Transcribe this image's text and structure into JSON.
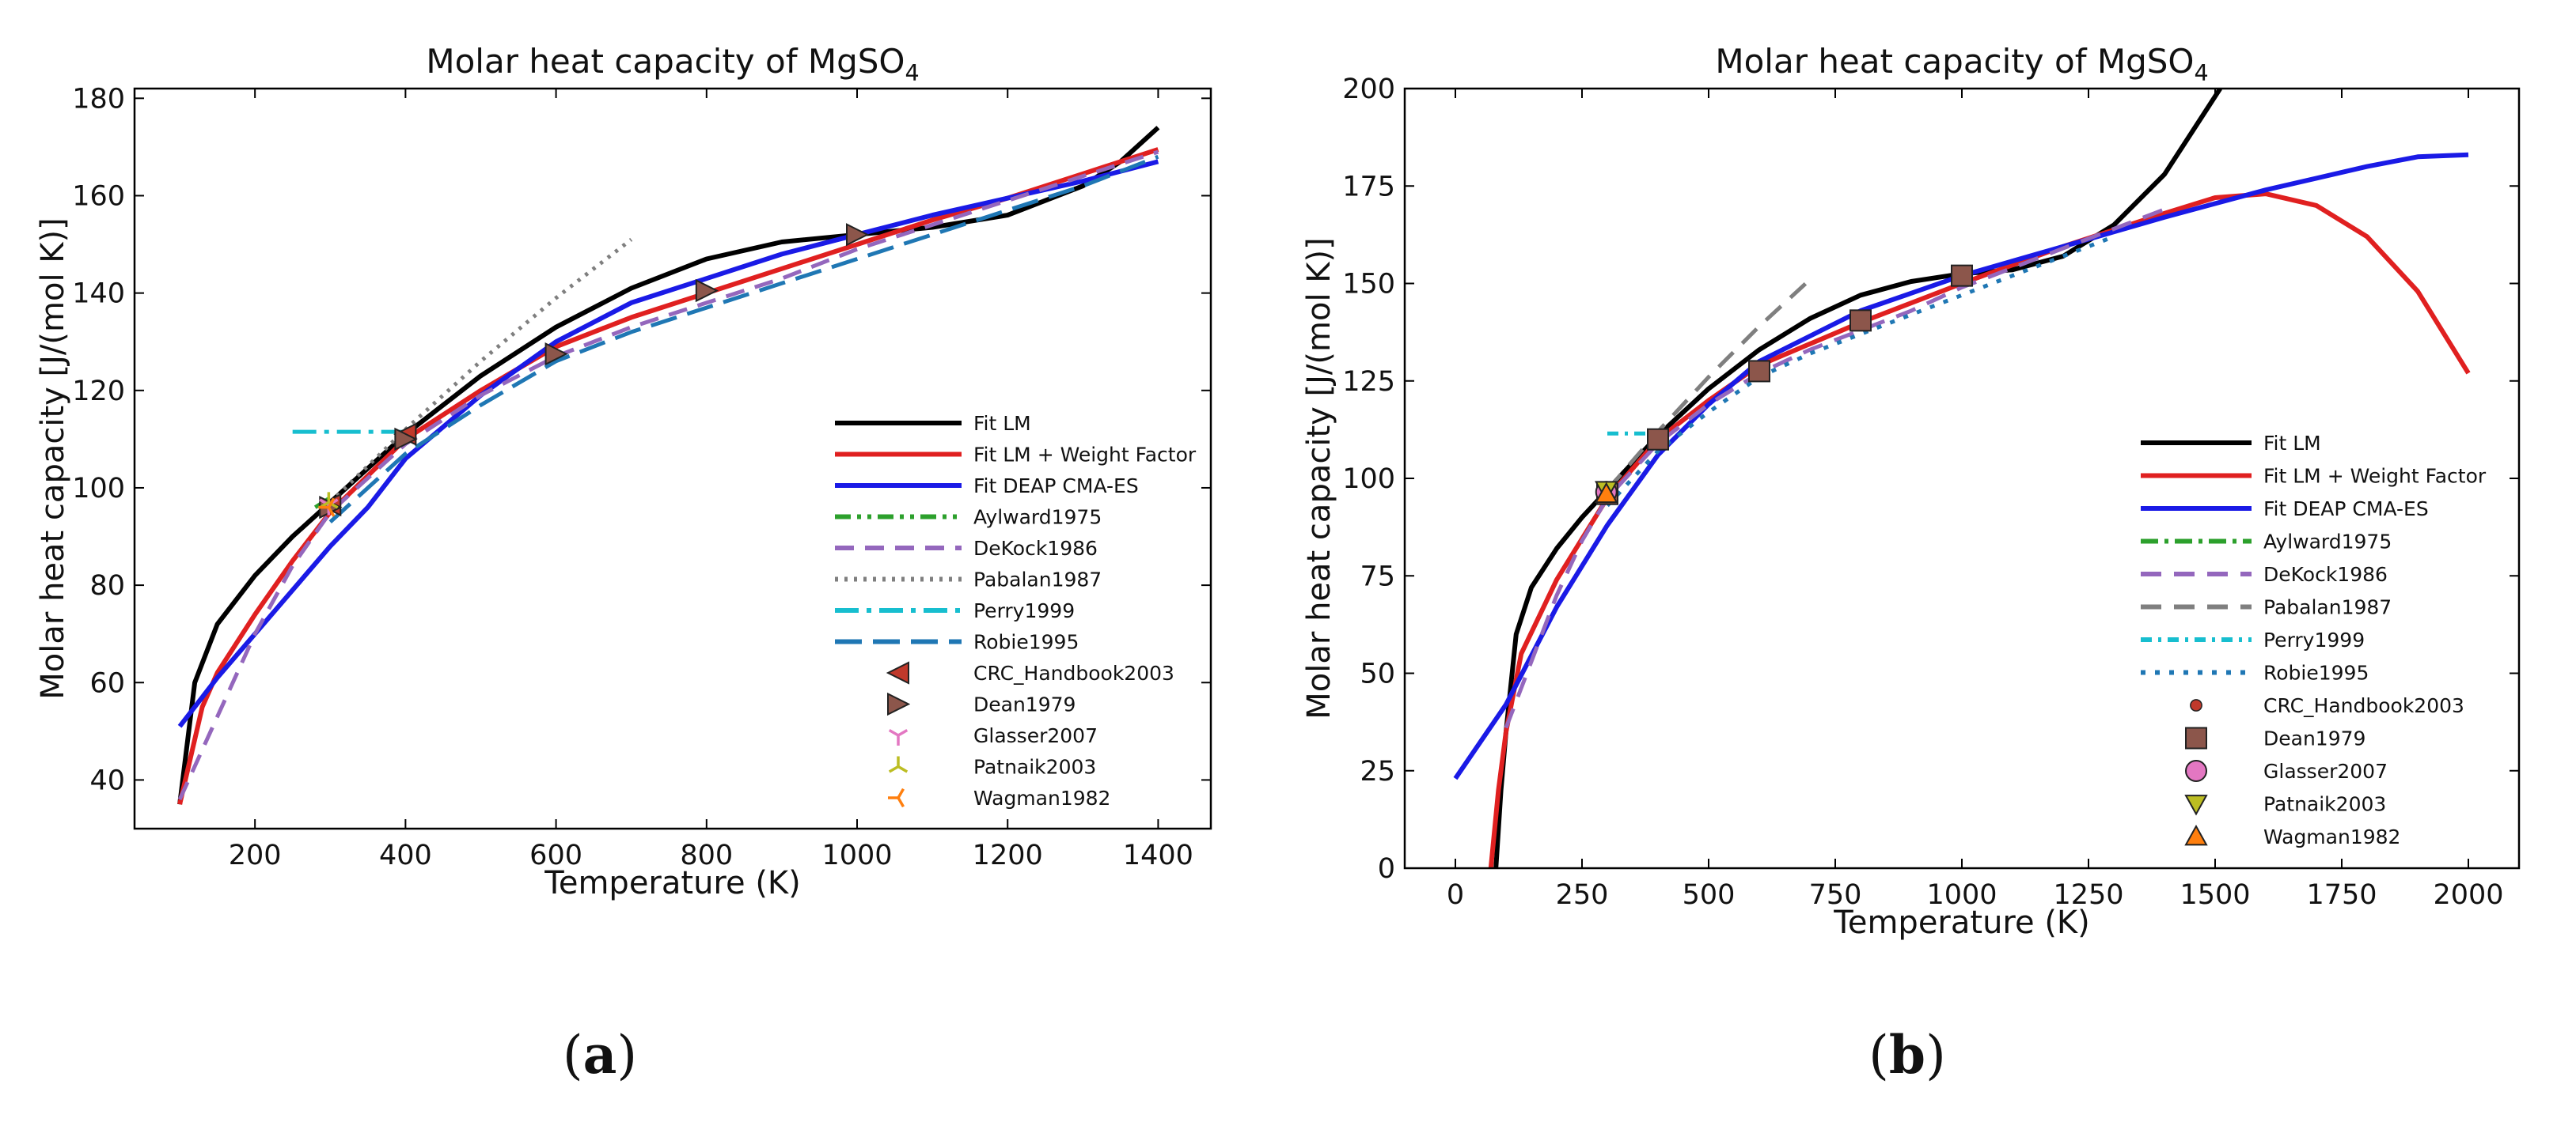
{
  "panels": [
    {
      "label_open": "(",
      "label_letter": "a",
      "label_close": ")"
    },
    {
      "label_open": "(",
      "label_letter": "b",
      "label_close": ")"
    }
  ],
  "chart_data": [
    {
      "type": "line",
      "title": "Molar heat capacity of MgSO",
      "title_subscript": "4",
      "xlabel": "Temperature (K)",
      "ylabel": "Molar heat capacity [J/(mol K)]",
      "xlim": [
        40,
        1470
      ],
      "ylim": [
        30,
        182
      ],
      "xticks": [
        200,
        400,
        600,
        800,
        1000,
        1200,
        1400
      ],
      "yticks": [
        40,
        60,
        80,
        100,
        120,
        140,
        160,
        180
      ],
      "legend_position": "lower-right",
      "series": [
        {
          "name": "Fit LM",
          "kind": "line",
          "color": "#000000",
          "dash": "",
          "points": [
            [
              100,
              35
            ],
            [
              120,
              60
            ],
            [
              150,
              72
            ],
            [
              200,
              82
            ],
            [
              250,
              90
            ],
            [
              300,
              97
            ],
            [
              350,
              104
            ],
            [
              400,
              111
            ],
            [
              450,
              117
            ],
            [
              500,
              123
            ],
            [
              600,
              133
            ],
            [
              700,
              141
            ],
            [
              800,
              147
            ],
            [
              900,
              150.5
            ],
            [
              1000,
              152
            ],
            [
              1100,
              153.5
            ],
            [
              1200,
              156
            ],
            [
              1300,
              162
            ],
            [
              1350,
              167
            ],
            [
              1400,
              174
            ]
          ]
        },
        {
          "name": "Fit LM + Weight Factor",
          "kind": "line",
          "color": "#e02020",
          "dash": "",
          "points": [
            [
              100,
              35
            ],
            [
              130,
              55
            ],
            [
              150,
              62
            ],
            [
              200,
              74
            ],
            [
              250,
              85
            ],
            [
              300,
              95
            ],
            [
              400,
              110
            ],
            [
              500,
              120
            ],
            [
              600,
              129
            ],
            [
              700,
              135
            ],
            [
              800,
              140
            ],
            [
              900,
              145
            ],
            [
              1000,
              150
            ],
            [
              1100,
              155
            ],
            [
              1200,
              159.5
            ],
            [
              1300,
              164.5
            ],
            [
              1400,
              169.5
            ]
          ]
        },
        {
          "name": "Fit DEAP CMA-ES",
          "kind": "line",
          "color": "#1a1ae6",
          "dash": "",
          "points": [
            [
              100,
              51
            ],
            [
              150,
              61
            ],
            [
              200,
              70
            ],
            [
              250,
              79
            ],
            [
              300,
              88
            ],
            [
              350,
              96
            ],
            [
              400,
              106
            ],
            [
              500,
              119
            ],
            [
              600,
              130
            ],
            [
              700,
              138
            ],
            [
              800,
              143
            ],
            [
              900,
              148
            ],
            [
              1000,
              152
            ],
            [
              1100,
              156
            ],
            [
              1200,
              159.5
            ],
            [
              1300,
              163
            ],
            [
              1400,
              167
            ]
          ]
        },
        {
          "name": "Aylward1975",
          "kind": "line",
          "color": "#2ca02c",
          "dash": "20 8 5 8 5 8",
          "points": [
            [
              280,
              96
            ],
            [
              300,
              98
            ]
          ]
        },
        {
          "name": "DeKock1986",
          "kind": "line",
          "color": "#9467bd",
          "dash": "24 14",
          "points": [
            [
              100,
              36
            ],
            [
              150,
              53
            ],
            [
              200,
              70
            ],
            [
              250,
              84
            ],
            [
              300,
              95
            ],
            [
              400,
              109
            ],
            [
              500,
              119
            ],
            [
              600,
              127
            ],
            [
              700,
              133
            ],
            [
              800,
              138
            ],
            [
              900,
              143
            ],
            [
              1000,
              149
            ],
            [
              1100,
              154
            ],
            [
              1200,
              159
            ],
            [
              1300,
              164
            ],
            [
              1400,
              169
            ]
          ]
        },
        {
          "name": "Pabalan1987",
          "kind": "line",
          "color": "#7f7f7f",
          "dash": "4 8",
          "points": [
            [
              300,
              97
            ],
            [
              400,
              112
            ],
            [
              500,
              126
            ],
            [
              600,
              139
            ],
            [
              700,
              151
            ]
          ]
        },
        {
          "name": "Perry1999",
          "kind": "line",
          "color": "#17becf",
          "dash": "30 10 6 10",
          "points": [
            [
              250,
              111.5
            ],
            [
              400,
              111.5
            ]
          ]
        },
        {
          "name": "Robie1995",
          "kind": "line",
          "color": "#1f77b4",
          "dash": "34 14",
          "points": [
            [
              300,
              93
            ],
            [
              400,
              107
            ],
            [
              500,
              117
            ],
            [
              600,
              126
            ],
            [
              700,
              132
            ],
            [
              800,
              137
            ],
            [
              900,
              142
            ],
            [
              1000,
              147
            ],
            [
              1100,
              152
            ],
            [
              1200,
              157
            ],
            [
              1300,
              162
            ],
            [
              1400,
              168
            ]
          ]
        },
        {
          "name": "CRC_Handbook2003",
          "kind": "marker",
          "marker": "triangle-left",
          "color": "#c0392b",
          "points": [
            [
              300,
              96.5
            ],
            [
              400,
              111
            ]
          ]
        },
        {
          "name": "Dean1979",
          "kind": "marker",
          "marker": "triangle-right",
          "color": "#8c564b",
          "points": [
            [
              300,
              96
            ],
            [
              400,
              110
            ],
            [
              600,
              127.5
            ],
            [
              800,
              140.5
            ],
            [
              1000,
              152
            ]
          ]
        },
        {
          "name": "Glasser2007",
          "kind": "marker",
          "marker": "tri-down",
          "color": "#e377c2",
          "points": [
            [
              298,
              96.5
            ]
          ]
        },
        {
          "name": "Patnaik2003",
          "kind": "marker",
          "marker": "tri-up",
          "color": "#bcbd22",
          "points": [
            [
              298,
              97
            ]
          ]
        },
        {
          "name": "Wagman1982",
          "kind": "marker",
          "marker": "tri-left",
          "color": "#ff7f0e",
          "points": [
            [
              298,
              96
            ]
          ]
        }
      ]
    },
    {
      "type": "line",
      "title": "Molar heat capacity of MgSO",
      "title_subscript": "4",
      "xlabel": "Temperature (K)",
      "ylabel": "Molar heat capacity [J/(mol K)]",
      "xlim": [
        -100,
        2100
      ],
      "ylim": [
        0,
        200
      ],
      "xticks": [
        0,
        250,
        500,
        750,
        1000,
        1250,
        1500,
        1750,
        2000
      ],
      "yticks": [
        0,
        25,
        50,
        75,
        100,
        125,
        150,
        175,
        200
      ],
      "legend_position": "lower-right",
      "series": [
        {
          "name": "Fit LM",
          "kind": "line",
          "color": "#000000",
          "dash": "",
          "points": [
            [
              80,
              0
            ],
            [
              90,
              20
            ],
            [
              100,
              35
            ],
            [
              120,
              60
            ],
            [
              150,
              72
            ],
            [
              200,
              82
            ],
            [
              250,
              90
            ],
            [
              300,
              97
            ],
            [
              400,
              111
            ],
            [
              500,
              123
            ],
            [
              600,
              133
            ],
            [
              700,
              141
            ],
            [
              800,
              147
            ],
            [
              900,
              150.5
            ],
            [
              1000,
              152.5
            ],
            [
              1100,
              153.5
            ],
            [
              1200,
              157
            ],
            [
              1300,
              165
            ],
            [
              1400,
              178
            ],
            [
              1450,
              188
            ],
            [
              1500,
              198
            ],
            [
              1510,
              200
            ]
          ]
        },
        {
          "name": "Fit LM + Weight Factor",
          "kind": "line",
          "color": "#e02020",
          "dash": "",
          "points": [
            [
              70,
              0
            ],
            [
              85,
              20
            ],
            [
              100,
              35
            ],
            [
              130,
              55
            ],
            [
              200,
              74
            ],
            [
              300,
              95
            ],
            [
              400,
              110
            ],
            [
              500,
              120
            ],
            [
              600,
              129
            ],
            [
              800,
              140
            ],
            [
              1000,
              150
            ],
            [
              1200,
              159.5
            ],
            [
              1400,
              168
            ],
            [
              1500,
              172
            ],
            [
              1600,
              173
            ],
            [
              1700,
              170
            ],
            [
              1800,
              162
            ],
            [
              1900,
              148
            ],
            [
              2000,
              127
            ]
          ]
        },
        {
          "name": "Fit DEAP CMA-ES",
          "kind": "line",
          "color": "#1a1ae6",
          "dash": "",
          "points": [
            [
              0,
              23
            ],
            [
              100,
              42
            ],
            [
              200,
              67
            ],
            [
              300,
              88
            ],
            [
              400,
              106
            ],
            [
              500,
              119
            ],
            [
              600,
              130
            ],
            [
              800,
              143
            ],
            [
              1000,
              152
            ],
            [
              1200,
              159.5
            ],
            [
              1400,
              167
            ],
            [
              1600,
              174
            ],
            [
              1800,
              180
            ],
            [
              1900,
              182.5
            ],
            [
              2000,
              183
            ]
          ]
        },
        {
          "name": "Aylward1975",
          "kind": "line",
          "color": "#2ca02c",
          "dash": "22 8 5 8",
          "points": [
            [
              280,
              96
            ],
            [
              300,
              98
            ]
          ]
        },
        {
          "name": "DeKock1986",
          "kind": "line",
          "color": "#9467bd",
          "dash": "26 16",
          "points": [
            [
              100,
              36
            ],
            [
              150,
              53
            ],
            [
              200,
              70
            ],
            [
              250,
              84
            ],
            [
              300,
              95
            ],
            [
              400,
              109
            ],
            [
              500,
              119
            ],
            [
              600,
              127
            ],
            [
              700,
              133
            ],
            [
              800,
              138
            ],
            [
              900,
              143
            ],
            [
              1000,
              149
            ],
            [
              1100,
              154
            ],
            [
              1200,
              159
            ],
            [
              1300,
              164
            ],
            [
              1400,
              169
            ]
          ]
        },
        {
          "name": "Pabalan1987",
          "kind": "line",
          "color": "#7f7f7f",
          "dash": "26 16",
          "points": [
            [
              300,
              97
            ],
            [
              400,
              112
            ],
            [
              500,
              126
            ],
            [
              600,
              139
            ],
            [
              700,
              151
            ]
          ]
        },
        {
          "name": "Perry1999",
          "kind": "line",
          "color": "#17becf",
          "dash": "14 8 4 8",
          "points": [
            [
              300,
              111.5
            ],
            [
              400,
              111.5
            ]
          ]
        },
        {
          "name": "Robie1995",
          "kind": "line",
          "color": "#1f77b4",
          "dash": "6 12",
          "points": [
            [
              300,
              93
            ],
            [
              400,
              107
            ],
            [
              500,
              117
            ],
            [
              600,
              126
            ],
            [
              700,
              132
            ],
            [
              800,
              137
            ],
            [
              900,
              142
            ],
            [
              1000,
              147
            ],
            [
              1100,
              152
            ],
            [
              1200,
              157
            ],
            [
              1300,
              162
            ]
          ]
        },
        {
          "name": "CRC_Handbook2003",
          "kind": "marker",
          "marker": "circle-small",
          "color": "#c0392b",
          "points": [
            [
              300,
              96.5
            ],
            [
              400,
              111
            ]
          ]
        },
        {
          "name": "Dean1979",
          "kind": "marker",
          "marker": "square",
          "color": "#8c564b",
          "points": [
            [
              300,
              96
            ],
            [
              400,
              110
            ],
            [
              600,
              127.5
            ],
            [
              800,
              140.5
            ],
            [
              1000,
              152
            ]
          ]
        },
        {
          "name": "Glasser2007",
          "kind": "marker",
          "marker": "circle",
          "color": "#e377c2",
          "points": [
            [
              298,
              96.5
            ]
          ]
        },
        {
          "name": "Patnaik2003",
          "kind": "marker",
          "marker": "triangle-down",
          "color": "#bcbd22",
          "points": [
            [
              298,
              97
            ]
          ]
        },
        {
          "name": "Wagman1982",
          "kind": "marker",
          "marker": "triangle-up",
          "color": "#ff7f0e",
          "points": [
            [
              298,
              96
            ]
          ]
        }
      ]
    }
  ]
}
